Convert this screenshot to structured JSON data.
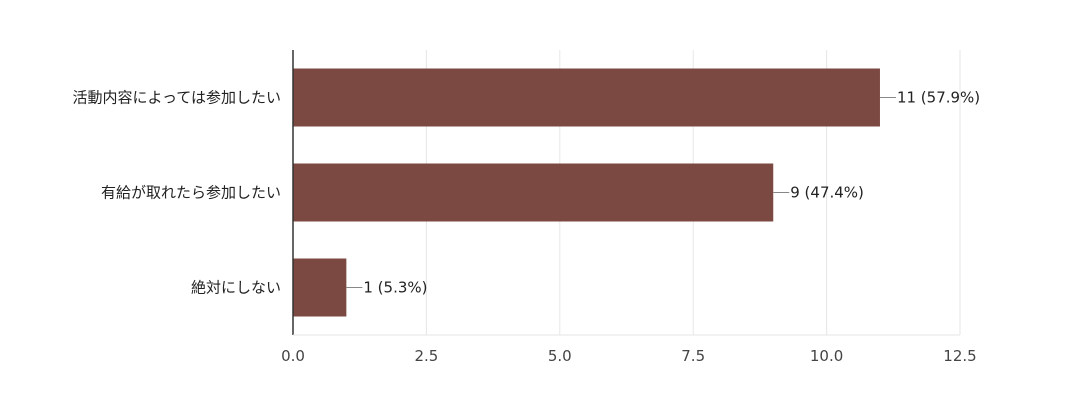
{
  "chart_data": {
    "type": "bar",
    "orientation": "horizontal",
    "categories": [
      "活動内容によっては参加したい",
      "有給が取れたら参加したい",
      "絶対にしない"
    ],
    "values": [
      11,
      9,
      1
    ],
    "data_labels": [
      "11 (57.9%)",
      "9 (47.4%)",
      "1 (5.3%)"
    ],
    "x_ticks": [
      "0.0",
      "2.5",
      "5.0",
      "7.5",
      "10.0",
      "12.5"
    ],
    "xlim": [
      0,
      12.5
    ],
    "grid": true,
    "legend": "none",
    "bar_color": "#7b4842",
    "title": "",
    "xlabel": "",
    "ylabel": ""
  }
}
